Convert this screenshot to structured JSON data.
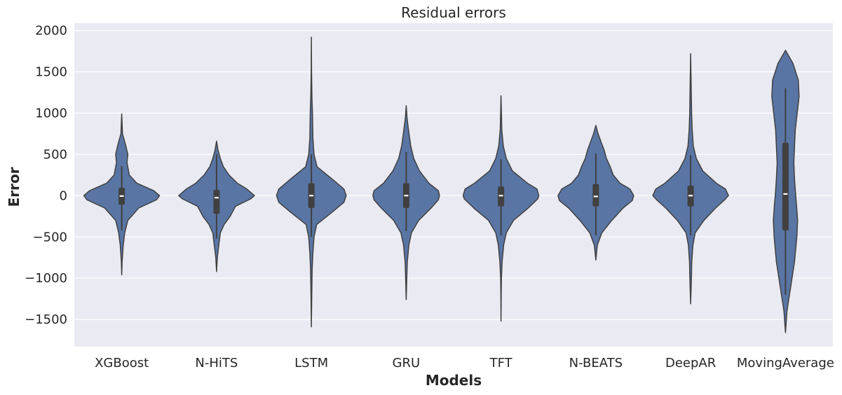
{
  "chart_data": {
    "type": "violin",
    "title": "Residual errors",
    "xlabel": "Models",
    "ylabel": "Error",
    "ylim": [
      -1830,
      2090
    ],
    "yticks": [
      2000,
      1500,
      1000,
      500,
      0,
      -500,
      -1000,
      -1500
    ],
    "ytick_labels": [
      "2000",
      "1500",
      "1000",
      "500",
      "0",
      "−500",
      "−1000",
      "−1500"
    ],
    "grid": true,
    "colors": {
      "violin": "#5975a4",
      "outline": "#404040",
      "background": "#eaeaf2",
      "grid": "#ffffff",
      "box": "#404040",
      "median": "#ffffff"
    },
    "categories": [
      "XGBoost",
      "N-HiTS",
      "LSTM",
      "GRU",
      "TFT",
      "N-BEATS",
      "DeepAR",
      "MovingAverage"
    ],
    "violins": [
      {
        "name": "XGBoost",
        "min": -960,
        "max": 990,
        "q1": -110,
        "median": -5,
        "q3": 95,
        "whisker_low": -420,
        "whisker_high": 360,
        "profile": [
          [
            -960,
            0
          ],
          [
            -800,
            0.01
          ],
          [
            -600,
            0.04
          ],
          [
            -450,
            0.08
          ],
          [
            -300,
            0.16
          ],
          [
            -150,
            0.45
          ],
          [
            -50,
            0.92
          ],
          [
            0,
            1.0
          ],
          [
            60,
            0.85
          ],
          [
            150,
            0.4
          ],
          [
            250,
            0.2
          ],
          [
            400,
            0.14
          ],
          [
            500,
            0.16
          ],
          [
            620,
            0.1
          ],
          [
            750,
            0.02
          ],
          [
            990,
            0
          ]
        ]
      },
      {
        "name": "N-HiTS",
        "min": -920,
        "max": 660,
        "q1": -220,
        "median": -25,
        "q3": 70,
        "whisker_low": -520,
        "whisker_high": 500,
        "profile": [
          [
            -920,
            0
          ],
          [
            -750,
            0.02
          ],
          [
            -600,
            0.06
          ],
          [
            -450,
            0.1
          ],
          [
            -350,
            0.2
          ],
          [
            -250,
            0.36
          ],
          [
            -130,
            0.5
          ],
          [
            -40,
            0.9
          ],
          [
            0,
            1.0
          ],
          [
            80,
            0.8
          ],
          [
            150,
            0.55
          ],
          [
            250,
            0.33
          ],
          [
            350,
            0.18
          ],
          [
            450,
            0.1
          ],
          [
            550,
            0.04
          ],
          [
            660,
            0
          ]
        ]
      },
      {
        "name": "LSTM",
        "min": -1590,
        "max": 1920,
        "q1": -150,
        "median": 0,
        "q3": 150,
        "whisker_low": -500,
        "whisker_high": 500,
        "profile": [
          [
            -1590,
            0
          ],
          [
            -1200,
            0.01
          ],
          [
            -900,
            0.02
          ],
          [
            -700,
            0.04
          ],
          [
            -500,
            0.07
          ],
          [
            -350,
            0.14
          ],
          [
            -200,
            0.55
          ],
          [
            -80,
            0.86
          ],
          [
            0,
            0.92
          ],
          [
            80,
            0.86
          ],
          [
            200,
            0.55
          ],
          [
            350,
            0.15
          ],
          [
            500,
            0.07
          ],
          [
            700,
            0.04
          ],
          [
            1000,
            0.03
          ],
          [
            1200,
            0.015
          ],
          [
            1500,
            0.005
          ],
          [
            1920,
            0
          ]
        ]
      },
      {
        "name": "GRU",
        "min": -1260,
        "max": 1090,
        "q1": -150,
        "median": 0,
        "q3": 150,
        "whisker_low": -430,
        "whisker_high": 530,
        "profile": [
          [
            -1260,
            0
          ],
          [
            -1000,
            0.015
          ],
          [
            -800,
            0.03
          ],
          [
            -600,
            0.07
          ],
          [
            -450,
            0.14
          ],
          [
            -300,
            0.33
          ],
          [
            -150,
            0.66
          ],
          [
            -50,
            0.85
          ],
          [
            0,
            0.88
          ],
          [
            60,
            0.85
          ],
          [
            150,
            0.6
          ],
          [
            300,
            0.35
          ],
          [
            450,
            0.2
          ],
          [
            600,
            0.12
          ],
          [
            800,
            0.06
          ],
          [
            950,
            0.02
          ],
          [
            1090,
            0
          ]
        ]
      },
      {
        "name": "TFT",
        "min": -1520,
        "max": 1210,
        "q1": -130,
        "median": 0,
        "q3": 110,
        "whisker_low": -480,
        "whisker_high": 440,
        "profile": [
          [
            -1520,
            0
          ],
          [
            -1200,
            0.005
          ],
          [
            -1000,
            0.01
          ],
          [
            -800,
            0.03
          ],
          [
            -600,
            0.07
          ],
          [
            -450,
            0.14
          ],
          [
            -300,
            0.33
          ],
          [
            -150,
            0.72
          ],
          [
            -40,
            0.97
          ],
          [
            0,
            1.0
          ],
          [
            80,
            0.95
          ],
          [
            150,
            0.7
          ],
          [
            300,
            0.3
          ],
          [
            450,
            0.14
          ],
          [
            600,
            0.06
          ],
          [
            800,
            0.02
          ],
          [
            1000,
            0.01
          ],
          [
            1210,
            0
          ]
        ]
      },
      {
        "name": "N-BEATS",
        "min": -780,
        "max": 850,
        "q1": -130,
        "median": -10,
        "q3": 140,
        "whisker_low": -480,
        "whisker_high": 510,
        "profile": [
          [
            -780,
            0
          ],
          [
            -600,
            0.04
          ],
          [
            -450,
            0.16
          ],
          [
            -300,
            0.42
          ],
          [
            -150,
            0.72
          ],
          [
            -60,
            0.96
          ],
          [
            0,
            1.0
          ],
          [
            80,
            0.9
          ],
          [
            150,
            0.64
          ],
          [
            250,
            0.46
          ],
          [
            350,
            0.38
          ],
          [
            450,
            0.28
          ],
          [
            550,
            0.22
          ],
          [
            650,
            0.14
          ],
          [
            750,
            0.06
          ],
          [
            850,
            0
          ]
        ]
      },
      {
        "name": "DeepAR",
        "min": -1310,
        "max": 1720,
        "q1": -130,
        "median": 0,
        "q3": 120,
        "whisker_low": -480,
        "whisker_high": 490,
        "profile": [
          [
            -1310,
            0
          ],
          [
            -1000,
            0.02
          ],
          [
            -800,
            0.03
          ],
          [
            -600,
            0.06
          ],
          [
            -450,
            0.12
          ],
          [
            -300,
            0.35
          ],
          [
            -150,
            0.66
          ],
          [
            -50,
            0.9
          ],
          [
            0,
            1.0
          ],
          [
            80,
            0.92
          ],
          [
            150,
            0.68
          ],
          [
            300,
            0.32
          ],
          [
            450,
            0.15
          ],
          [
            600,
            0.07
          ],
          [
            800,
            0.04
          ],
          [
            1000,
            0.025
          ],
          [
            1300,
            0.015
          ],
          [
            1720,
            0
          ]
        ]
      },
      {
        "name": "MovingAverage",
        "min": -1660,
        "max": 1760,
        "q1": -420,
        "median": 20,
        "q3": 640,
        "whisker_low": -1200,
        "whisker_high": 1300,
        "profile": [
          [
            -1660,
            0
          ],
          [
            -1400,
            0.04
          ],
          [
            -1100,
            0.14
          ],
          [
            -800,
            0.24
          ],
          [
            -500,
            0.3
          ],
          [
            -300,
            0.32
          ],
          [
            -100,
            0.29
          ],
          [
            0,
            0.27
          ],
          [
            200,
            0.24
          ],
          [
            400,
            0.22
          ],
          [
            600,
            0.24
          ],
          [
            800,
            0.26
          ],
          [
            1000,
            0.31
          ],
          [
            1200,
            0.36
          ],
          [
            1400,
            0.34
          ],
          [
            1600,
            0.2
          ],
          [
            1760,
            0
          ]
        ]
      }
    ]
  }
}
